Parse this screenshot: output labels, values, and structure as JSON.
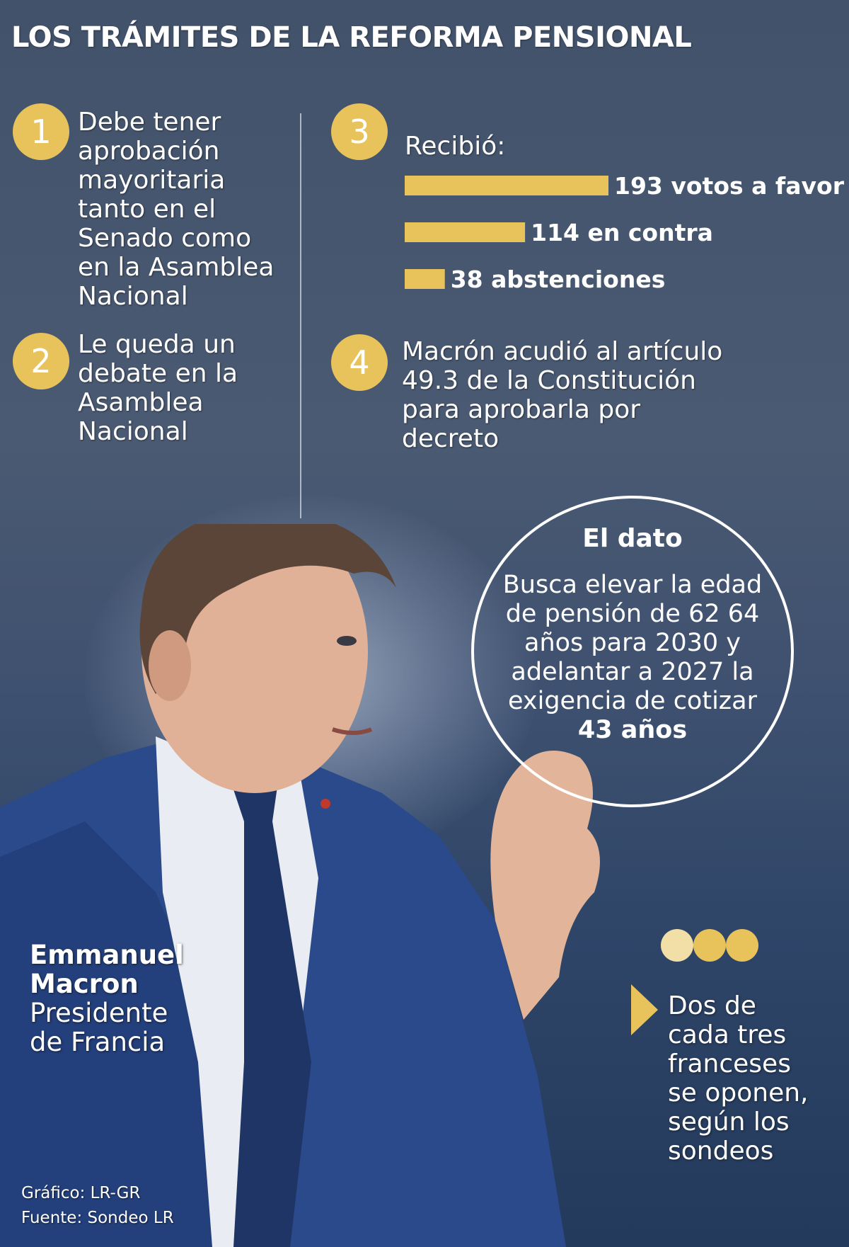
{
  "title": "LOS TRÁMITES DE LA REFORMA PENSIONAL",
  "steps": [
    {
      "number": "1",
      "text": "Debe tener aprobación mayoritaria tanto en el Senado como en la Asamblea Nacional"
    },
    {
      "number": "2",
      "text": "Le queda un debate en la Asamblea Nacional"
    },
    {
      "number": "3",
      "label": "Recibió:"
    },
    {
      "number": "4",
      "text": "Macrón acudió al artículo 49.3 de la Constitución para aprobarla por decreto"
    }
  ],
  "chart_data": {
    "type": "bar",
    "orientation": "horizontal",
    "categories": [
      "votos a favor",
      "en contra",
      "abstenciones"
    ],
    "values": [
      193,
      114,
      38
    ],
    "labels": [
      "193 votos a favor",
      "114 en contra",
      "38 abstenciones"
    ],
    "color": "#e8c35c"
  },
  "dato": {
    "title": "El dato",
    "text": "Busca elevar la edad de pensión de 62 64 años para 2030 y adelantar a 2027 la exigencia de cotizar",
    "highlight": "43 años"
  },
  "person": {
    "name": "Emmanuel Macron",
    "role": "Presidente de Francia"
  },
  "opinion": "Dos de cada tres franceses se oponen, según los sondeos",
  "dot_colors": [
    "#f2dfa8",
    "#e8c35c",
    "#e8c35c"
  ],
  "credits": {
    "grafico": "Gráfico: LR-GR",
    "fuente": "Fuente: Sondeo LR"
  }
}
